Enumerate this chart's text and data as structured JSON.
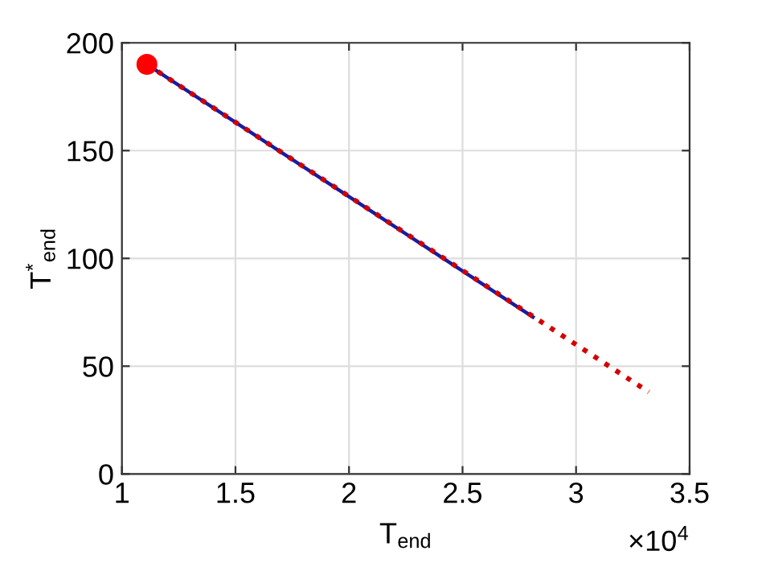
{
  "chart_data": {
    "type": "line",
    "xlabel": "T$_{end}$",
    "ylabel": "T$^{*}$$_{end}$",
    "annotations": [
      "×10$^{4}$"
    ],
    "series": [
      {
        "color": "#1c1c9c",
        "x": [
          1.11,
          2.81
        ],
        "values": [
          190,
          72.8
        ],
        "line_style": "solid",
        "marker": "none"
      },
      {
        "color": "#d40000",
        "x": [
          1.11,
          3.32
        ],
        "values": [
          190,
          38
        ],
        "line_style": "dotted",
        "marker": "none"
      },
      {
        "type": "scatter",
        "color": "#ff0000",
        "x": [
          1.11
        ],
        "values": [
          190
        ],
        "marker": "circle"
      }
    ],
    "xlim": [
      1,
      3.5
    ],
    "xticks": [
      1,
      1.5,
      2,
      2.5,
      3,
      3.5
    ],
    "ylim": [
      0,
      200
    ],
    "yticks": [
      0,
      50,
      100,
      150,
      200
    ],
    "grid": true
  }
}
